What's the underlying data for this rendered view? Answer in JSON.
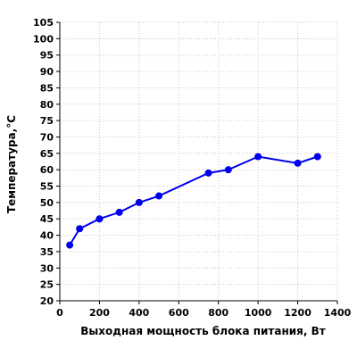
{
  "chart_data": {
    "type": "line",
    "title": "",
    "xlabel": "Выходная мощность блока питания, Вт",
    "ylabel": "Температура,°С",
    "xlim": [
      0,
      1400
    ],
    "ylim": [
      20,
      105
    ],
    "xticks": [
      0,
      200,
      400,
      600,
      800,
      1000,
      1200,
      1400
    ],
    "yticks": [
      20,
      25,
      30,
      35,
      40,
      45,
      50,
      55,
      60,
      65,
      70,
      75,
      80,
      85,
      90,
      95,
      100,
      105
    ],
    "grid": true,
    "series": [
      {
        "color": "#0000ee",
        "x": [
          50,
          100,
          200,
          300,
          400,
          500,
          750,
          850,
          1000,
          1200,
          1300
        ],
        "y": [
          37,
          42,
          45,
          47,
          50,
          52,
          59,
          60,
          64,
          62,
          64
        ]
      }
    ]
  }
}
